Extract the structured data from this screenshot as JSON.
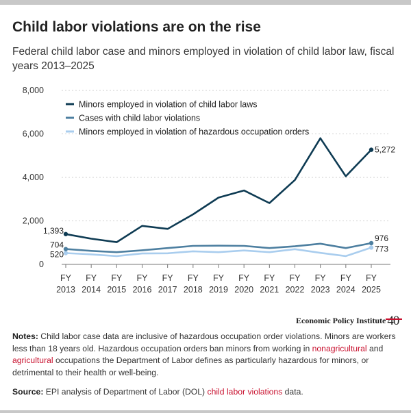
{
  "title": "Child labor violations are on the rise",
  "subtitle": "Federal child labor case and minors employed in violation of child labor law, fiscal years 2013–2025",
  "brand": {
    "name": "Economic Policy Institute",
    "mark": "40",
    "accent": "#c8102e"
  },
  "notes": {
    "label": "Notes:",
    "text_1": " Child labor case data are inclusive of hazardous occupation order violations. Minors are workers less than 18 years old. Hazardous occupation orders ban minors from working in ",
    "link_1": "nonagricultural",
    "text_2": " and ",
    "link_2": "agricultural",
    "text_3": " occupations the Department of Labor defines as particularly hazardous for minors, or detrimental to their health or well-being."
  },
  "source": {
    "label": "Source:",
    "text_1": " EPI analysis of Department of Labor (DOL) ",
    "link": "child labor violations",
    "text_2": " data."
  },
  "chart_data": {
    "type": "line",
    "title": "Child labor violations are on the rise",
    "xlabel": "",
    "ylabel": "",
    "x": [
      "FY 2013",
      "FY 2014",
      "FY 2015",
      "FY 2016",
      "FY 2017",
      "FY 2018",
      "FY 2019",
      "FY 2020",
      "FY 2021",
      "FY 2022",
      "FY 2023",
      "FY 2024",
      "FY 2025"
    ],
    "x_tick_lines": [
      [
        "FY",
        "2013"
      ],
      [
        "FY",
        "2014"
      ],
      [
        "FY",
        "2015"
      ],
      [
        "FY",
        "2016"
      ],
      [
        "FY",
        "2017"
      ],
      [
        "FY",
        "2018"
      ],
      [
        "FY",
        "2019"
      ],
      [
        "FY",
        "2020"
      ],
      [
        "FY",
        "2021"
      ],
      [
        "FY",
        "2022"
      ],
      [
        "FY",
        "2023"
      ],
      [
        "FY",
        "2024"
      ],
      [
        "FY",
        "2025"
      ]
    ],
    "yticks": [
      0,
      2000,
      4000,
      6000,
      8000
    ],
    "ytick_labels": [
      "0",
      "2,000",
      "4,000",
      "6,000",
      "8,000"
    ],
    "ylim": [
      0,
      8000
    ],
    "grid": true,
    "legend_position": "top-left",
    "series": [
      {
        "name": "Minors employed in violation of child labor laws",
        "color": "#0e3b53",
        "values": [
          1393,
          1180,
          1020,
          1770,
          1630,
          2300,
          3070,
          3400,
          2820,
          3880,
          5800,
          4050,
          5272
        ],
        "start_label": "1,393",
        "end_label": "5,272"
      },
      {
        "name": "Cases with child labor violations",
        "color": "#4d7fa0",
        "values": [
          704,
          620,
          560,
          650,
          750,
          850,
          860,
          850,
          750,
          830,
          950,
          750,
          976
        ],
        "start_label": "704",
        "end_label": "976"
      },
      {
        "name": "Minors employed in violation of hazardous occupation orders",
        "color": "#a9cdee",
        "values": [
          520,
          460,
          380,
          500,
          510,
          600,
          560,
          640,
          560,
          700,
          530,
          380,
          773
        ],
        "start_label": "520",
        "end_label": "773"
      }
    ]
  }
}
